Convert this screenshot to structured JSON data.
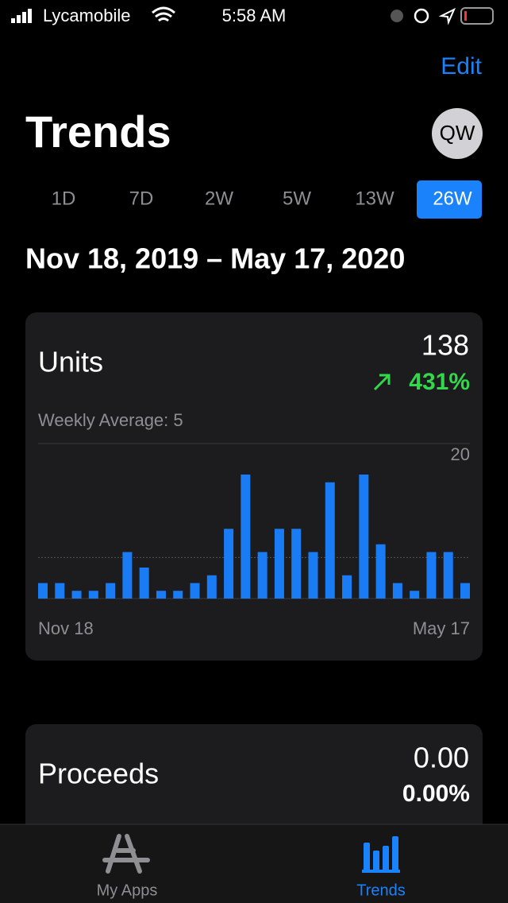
{
  "status": {
    "carrier": "Lycamobile",
    "time": "5:58 AM"
  },
  "nav": {
    "edit": "Edit",
    "title": "Trends",
    "avatar": "QW"
  },
  "ranges": {
    "options": [
      "1D",
      "7D",
      "2W",
      "5W",
      "13W",
      "26W"
    ],
    "selected": 5
  },
  "date_range": "Nov 18, 2019 – May 17, 2020",
  "units": {
    "title": "Units",
    "total": "138",
    "change": "431%",
    "weekly_average": "Weekly Average: 5"
  },
  "chart_data": {
    "type": "bar",
    "color": "#1a7cf5",
    "categories": [
      "Nov 18",
      null,
      null,
      null,
      null,
      null,
      null,
      null,
      null,
      null,
      null,
      null,
      null,
      null,
      null,
      null,
      null,
      null,
      null,
      null,
      null,
      null,
      null,
      null,
      null,
      "May 17"
    ],
    "values": [
      2,
      2,
      1,
      1,
      2,
      6,
      4,
      1,
      1,
      2,
      3,
      9,
      16,
      6,
      9,
      9,
      6,
      15,
      3,
      16,
      7,
      2,
      1,
      6,
      6,
      2
    ],
    "average": 5.3,
    "ylim": [
      0,
      20
    ],
    "yticks": [
      20
    ],
    "grid": true
  },
  "proceeds": {
    "title": "Proceeds",
    "total": "0.00",
    "change": "0.00%"
  },
  "tabs": [
    "My Apps",
    "Trends"
  ]
}
